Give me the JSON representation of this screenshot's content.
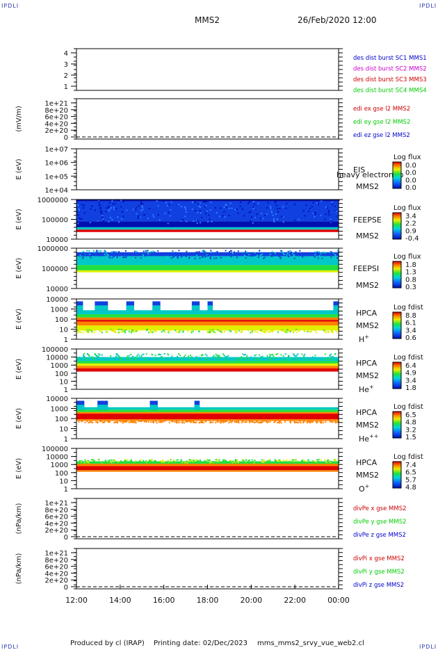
{
  "header": {
    "logo_left": "IPDLI",
    "logo_right": "IPDLI",
    "title": "MMS2",
    "date": "26/Feb/2020 12:00"
  },
  "footer": {
    "logo_left": "IPDLI",
    "logo_right": "IPDLI",
    "produced": "Produced by cl (IRAP)",
    "printing": "Printing date: 02/Dec/2023",
    "file": "mms_mms2_srvy_vue_web2.cl"
  },
  "colors": {
    "red": "#cc0000",
    "green": "#00cc00",
    "blue": "#0000cc",
    "magenta": "#cc00cc",
    "spec_dark_blue": "#0010b0",
    "spec_blue": "#1040e0",
    "spec_cyan": "#00c8c8",
    "spec_green": "#20e040",
    "spec_yellow": "#e0f000",
    "spec_orange": "#ff8000",
    "spec_red": "#e00000"
  },
  "chart_data": {
    "type": "heatmap",
    "x_ticks": [
      "12:00",
      "14:00",
      "16:00",
      "18:00",
      "20:00",
      "22:00",
      "00:00"
    ],
    "x_range": [
      "12:00",
      "00:00"
    ],
    "panels": [
      {
        "id": "des_dist",
        "kind": "burst",
        "ylabel": "",
        "ylim": [
          1,
          4
        ],
        "yticks": [
          "1",
          "2",
          "3",
          "4"
        ],
        "legend": [
          {
            "text": "des dist burst SC1 MMS1",
            "color": "#0000cc"
          },
          {
            "text": "des dist burst SC2 MMS2",
            "color": "#cc00cc"
          },
          {
            "text": "des dist burst SC3 MMS3",
            "color": "#cc0000"
          },
          {
            "text": "des dist burst SC4 MMS4",
            "color": "#00cc00"
          }
        ]
      },
      {
        "id": "edi",
        "kind": "lines",
        "ylabel": "(mV/m)",
        "ylim": [
          0,
          1e+21
        ],
        "yticks": [
          "0",
          "2e+20",
          "4e+20",
          "6e+20",
          "8e+20",
          "1e+21"
        ],
        "legend": [
          {
            "text": "edi ex gse l2 MMS2",
            "color": "#cc0000"
          },
          {
            "text": "edi ey gse l2 MMS2",
            "color": "#00cc00"
          },
          {
            "text": "edi ez gse l2 MMS2",
            "color": "#0000cc"
          }
        ]
      },
      {
        "id": "eis",
        "kind": "spectrogram",
        "ylabel": "E (eV)",
        "ylim": [
          10000,
          10000000
        ],
        "log": true,
        "yticks": [
          "1e+04",
          "1e+05",
          "1e+06",
          "1e+07"
        ],
        "instrument": "EIS",
        "instrument_note": "heavy electron to",
        "spacecraft": "MMS2",
        "species": "",
        "colorbar_title": "Log flux",
        "colorbar_ticks": [
          "0.0",
          "0.0",
          "0.0",
          "0.0"
        ],
        "fill": "none"
      },
      {
        "id": "feepse",
        "kind": "spectrogram",
        "ylabel": "E (eV)",
        "ylim": [
          10000,
          1000000
        ],
        "log": true,
        "yticks": [
          "10000",
          "100000",
          "1000000"
        ],
        "instrument": "FEEPSE",
        "instrument_note": "",
        "spacecraft": "MMS2",
        "species": "",
        "colorbar_title": "Log flux",
        "colorbar_ticks": [
          "3.4",
          "2.2",
          "0.9",
          "-0.4"
        ],
        "fill": "feepse"
      },
      {
        "id": "feepsi",
        "kind": "spectrogram",
        "ylabel": "E (eV)",
        "ylim": [
          10000,
          1000000
        ],
        "log": true,
        "yticks": [
          "10000",
          "100000",
          "1000000"
        ],
        "instrument": "FEEPSI",
        "instrument_note": "",
        "spacecraft": "MMS2",
        "species": "",
        "colorbar_title": "Log flux",
        "colorbar_ticks": [
          "1.8",
          "1.3",
          "0.8",
          "0.3"
        ],
        "fill": "feepsi"
      },
      {
        "id": "hpca_h",
        "kind": "spectrogram",
        "ylabel": "E (eV)",
        "ylim": [
          1,
          10000
        ],
        "log": true,
        "yticks": [
          "1",
          "10",
          "100",
          "1000",
          "10000"
        ],
        "instrument": "HPCA",
        "instrument_note": "",
        "spacecraft": "MMS2",
        "species": "H",
        "species_sup": "+",
        "colorbar_title": "Log fdist",
        "colorbar_ticks": [
          "8.8",
          "6.1",
          "3.4",
          "0.6"
        ],
        "fill": "hpca_h"
      },
      {
        "id": "hpca_he",
        "kind": "spectrogram",
        "ylabel": "E (eV)",
        "ylim": [
          1,
          100000
        ],
        "log": true,
        "yticks": [
          "1",
          "10",
          "100",
          "1000",
          "10000",
          "100000"
        ],
        "instrument": "HPCA",
        "instrument_note": "",
        "spacecraft": "MMS2",
        "species": "He",
        "species_sup": "+",
        "colorbar_title": "Log fdist",
        "colorbar_ticks": [
          "6.4",
          "4.9",
          "3.4",
          "1.8"
        ],
        "fill": "hpca_he"
      },
      {
        "id": "hpca_hepp",
        "kind": "spectrogram",
        "ylabel": "E (eV)",
        "ylim": [
          1,
          10000
        ],
        "log": true,
        "yticks": [
          "1",
          "10",
          "100",
          "1000",
          "10000"
        ],
        "instrument": "HPCA",
        "instrument_note": "",
        "spacecraft": "MMS2",
        "species": "He",
        "species_sup": "++",
        "colorbar_title": "Log fdist",
        "colorbar_ticks": [
          "6.5",
          "4.8",
          "3.2",
          "1.5"
        ],
        "fill": "hpca_hepp"
      },
      {
        "id": "hpca_o",
        "kind": "spectrogram",
        "ylabel": "E (eV)",
        "ylim": [
          1,
          100000
        ],
        "log": true,
        "yticks": [
          "1",
          "10",
          "100",
          "1000",
          "10000",
          "100000"
        ],
        "instrument": "HPCA",
        "instrument_note": "",
        "spacecraft": "MMS2",
        "species": "O",
        "species_sup": "+",
        "colorbar_title": "Log fdist",
        "colorbar_ticks": [
          "7.4",
          "6.5",
          "5.7",
          "4.8"
        ],
        "fill": "hpca_o"
      },
      {
        "id": "divpe",
        "kind": "lines",
        "ylabel": "(nPa/km)",
        "ylim": [
          0,
          1e+21
        ],
        "yticks": [
          "0",
          "2e+20",
          "4e+20",
          "6e+20",
          "8e+20",
          "1e+21"
        ],
        "legend": [
          {
            "text": "divPe x gse MMS2",
            "color": "#cc0000"
          },
          {
            "text": "divPe y gse MMS2",
            "color": "#00cc00"
          },
          {
            "text": "divPe z gse MMS2",
            "color": "#0000cc"
          }
        ]
      },
      {
        "id": "divpi",
        "kind": "lines",
        "ylabel": "(nPa/km)",
        "ylim": [
          0,
          1e+21
        ],
        "yticks": [
          "0",
          "2e+20",
          "4e+20",
          "6e+20",
          "8e+20",
          "1e+21"
        ],
        "legend": [
          {
            "text": "divPi x gse MMS2",
            "color": "#cc0000"
          },
          {
            "text": "divPi y gse MMS2",
            "color": "#00cc00"
          },
          {
            "text": "divPi z gse MMS2",
            "color": "#0000cc"
          }
        ]
      }
    ]
  }
}
